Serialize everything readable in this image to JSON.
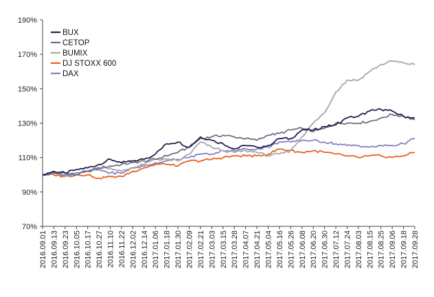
{
  "chart_data": {
    "type": "line",
    "title": "",
    "xlabel": "",
    "ylabel": "",
    "ylim": [
      70,
      190
    ],
    "y_ticks": [
      70,
      90,
      110,
      130,
      150,
      170,
      190
    ],
    "y_tick_labels": [
      "70%",
      "90%",
      "110%",
      "130%",
      "150%",
      "170%",
      "190%"
    ],
    "x_tick_labels": [
      "2016.09.01",
      "2016.09.13",
      "2016.09.23",
      "2016.10.05",
      "2016.10.17",
      "2016.10.27",
      "2016.11.10",
      "2016.11.22",
      "2016.12.02",
      "2016.12.14",
      "2017.01.06",
      "2017.01.18",
      "2017.01.30",
      "2017.02.09",
      "2017.02.21",
      "2017.03.03",
      "2017.03.15",
      "2017.03.28",
      "2017.04.07",
      "2017.04.21",
      "2017.05.04",
      "2017.05.16",
      "2017.05.26",
      "2017.06.08",
      "2017.06.20",
      "2017.06.30",
      "2017.07.12",
      "2017.07.24",
      "2017.08.03",
      "2017.08.15",
      "2017.08.25",
      "2017.09.06",
      "2017.09.18",
      "2017.09.28"
    ],
    "legend_position": "top-left",
    "series": [
      {
        "name": "BUX",
        "color": "#1f1f4f",
        "values": [
          100,
          102,
          101,
          103,
          104,
          106,
          109,
          107,
          108,
          109,
          112,
          118,
          119,
          116,
          122,
          120,
          118,
          115,
          117,
          116,
          117,
          121,
          121,
          126,
          126,
          128,
          129,
          133,
          134,
          137,
          138,
          137,
          134,
          133
        ]
      },
      {
        "name": "CETOP",
        "color": "#6f6f87",
        "values": [
          100,
          101,
          100,
          100,
          102,
          104,
          105,
          106,
          107,
          108,
          109,
          111,
          113,
          116,
          121,
          122,
          123,
          122,
          121,
          120,
          123,
          124,
          126,
          127,
          125,
          127,
          130,
          130,
          130,
          131,
          133,
          135,
          134,
          132
        ]
      },
      {
        "name": "BUMIX",
        "color": "#a6a6a6",
        "values": [
          100,
          101,
          99,
          100,
          102,
          104,
          104,
          102,
          104,
          106,
          109,
          109,
          108,
          112,
          119,
          116,
          114,
          113,
          114,
          113,
          111,
          112,
          114,
          122,
          130,
          136,
          148,
          155,
          155,
          160,
          164,
          166,
          165,
          164
        ]
      },
      {
        "name": "DJ STOXX 600",
        "color": "#e8601c",
        "values": [
          100,
          100,
          99,
          100,
          100,
          98,
          99,
          99,
          102,
          104,
          106,
          106,
          105,
          108,
          108,
          109,
          110,
          111,
          111,
          111,
          112,
          115,
          114,
          113,
          114,
          113,
          112,
          111,
          110,
          111,
          111,
          110,
          111,
          113
        ]
      },
      {
        "name": "DAX",
        "color": "#8080c0",
        "values": [
          100,
          101,
          101,
          101,
          102,
          103,
          101,
          101,
          104,
          105,
          107,
          108,
          109,
          110,
          112,
          112,
          114,
          114,
          115,
          115,
          116,
          119,
          119,
          120,
          120,
          119,
          118,
          117,
          117,
          116,
          117,
          117,
          118,
          121
        ]
      }
    ]
  }
}
